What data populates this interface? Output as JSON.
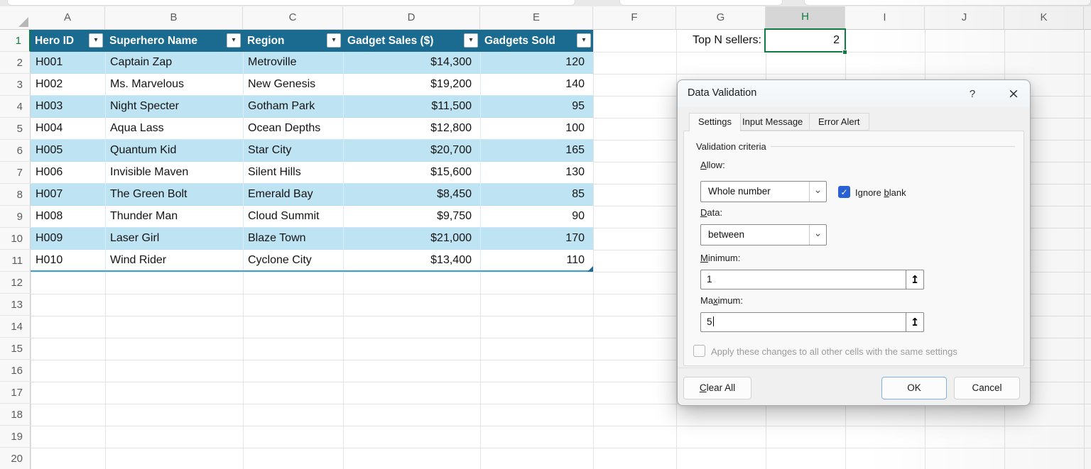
{
  "sheet": {
    "column_letters": [
      "A",
      "B",
      "C",
      "D",
      "E",
      "F",
      "G",
      "H",
      "I",
      "J",
      "K"
    ],
    "selected_column": "H",
    "row_numbers": [
      "1",
      "2",
      "3",
      "4",
      "5",
      "6",
      "7",
      "8",
      "9",
      "10",
      "11",
      "12",
      "13",
      "14",
      "15",
      "16",
      "17",
      "18",
      "19",
      "20"
    ],
    "selected_row": "1",
    "top_n_label": "Top N sellers:",
    "selected_cell_value": "2"
  },
  "table": {
    "headers": [
      "Hero ID",
      "Superhero Name",
      "Region",
      "Gadget Sales ($)",
      "Gadgets Sold"
    ],
    "rows": [
      [
        "H001",
        "Captain Zap",
        "Metroville",
        "$14,300",
        "120"
      ],
      [
        "H002",
        "Ms. Marvelous",
        "New Genesis",
        "$19,200",
        "140"
      ],
      [
        "H003",
        "Night Specter",
        "Gotham Park",
        "$11,500",
        "95"
      ],
      [
        "H004",
        "Aqua Lass",
        "Ocean Depths",
        "$12,800",
        "100"
      ],
      [
        "H005",
        "Quantum Kid",
        "Star City",
        "$20,700",
        "165"
      ],
      [
        "H006",
        "Invisible Maven",
        "Silent Hills",
        "$15,600",
        "130"
      ],
      [
        "H007",
        "The Green Bolt",
        "Emerald Bay",
        "$8,450",
        "85"
      ],
      [
        "H008",
        "Thunder Man",
        "Cloud Summit",
        "$9,750",
        "90"
      ],
      [
        "H009",
        "Laser Girl",
        "Blaze Town",
        "$21,000",
        "170"
      ],
      [
        "H010",
        "Wind Rider",
        "Cyclone City",
        "$13,400",
        "110"
      ]
    ]
  },
  "dialog": {
    "title": "Data Validation",
    "tabs": [
      "Settings",
      "Input Message",
      "Error Alert"
    ],
    "active_tab": "Settings",
    "group_label": "Validation criteria",
    "allow_label": {
      "u": "A",
      "rest": "llow:"
    },
    "allow_value": "Whole number",
    "ignore_label": {
      "pre": "Ignore ",
      "u": "b",
      "rest": "lank"
    },
    "ignore_checked": true,
    "data_label": {
      "u": "D",
      "rest": "ata:"
    },
    "data_value": "between",
    "min_label": {
      "u": "M",
      "rest": "inimum:"
    },
    "min_value": "1",
    "max_label": {
      "pre": "Ma",
      "u": "x",
      "rest": "imum:"
    },
    "max_value": "5",
    "apply_label": "Apply these changes to all other cells with the same settings",
    "apply_checked": false,
    "buttons": {
      "clear": {
        "u": "C",
        "rest": "lear All"
      },
      "ok": "OK",
      "cancel": "Cancel"
    }
  },
  "icons": {
    "help": "?",
    "close": "×",
    "filter": "▾",
    "chevron": "⌄",
    "collapse": "↥",
    "check": "✓"
  },
  "colors": {
    "table_header_teal": "#1a6b8f",
    "band_blue": "#bee3f2",
    "selection_green": "#107C41",
    "checkbox_blue": "#2a62d4",
    "gridline": "#e3e3e3"
  }
}
